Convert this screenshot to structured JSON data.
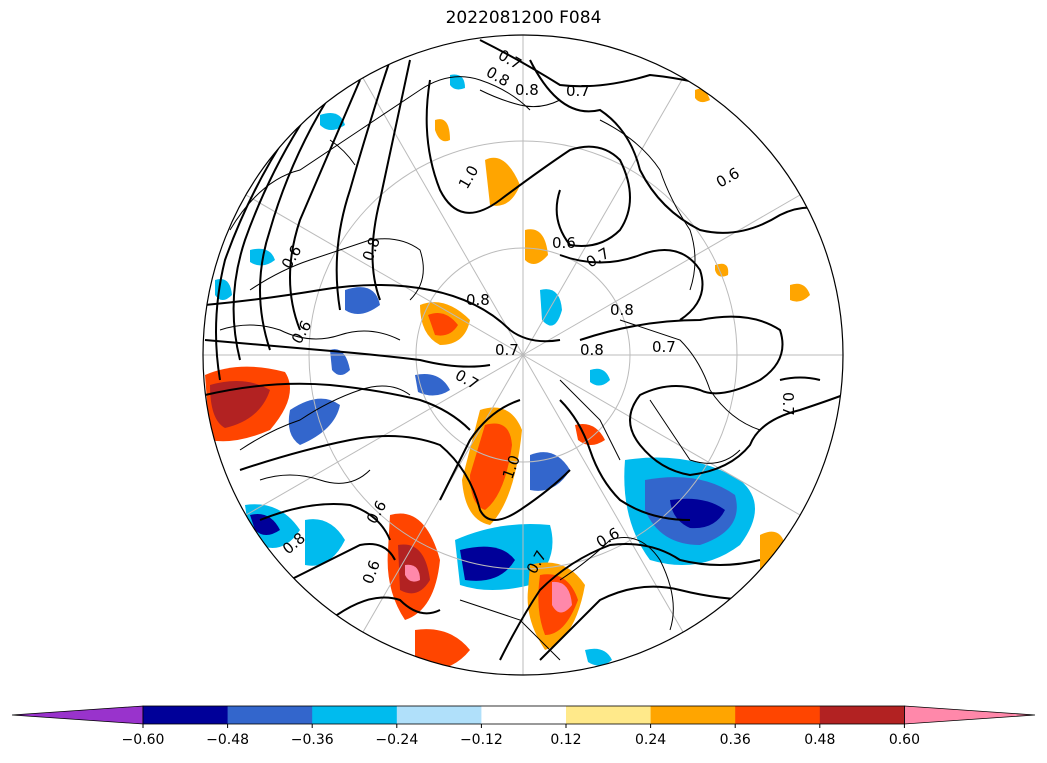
{
  "title": "2022081200 F084",
  "colorbar": {
    "ticks": [
      "−0.60",
      "−0.48",
      "−0.36",
      "−0.24",
      "−0.12",
      "0.12",
      "0.24",
      "0.36",
      "0.48",
      "0.60"
    ],
    "colors": [
      "#9933cc",
      "#000099",
      "#3366cc",
      "#00bbee",
      "#b0e0fa",
      "#ffffff",
      "#ffe98a",
      "#ffa500",
      "#ff4500",
      "#b22222",
      "#ff88aa"
    ]
  },
  "contour_labels": [
    "0.7",
    "0.8",
    "0.8",
    "0.7",
    "0.6",
    "0.6",
    "0.7",
    "0.8",
    "1.0",
    "0.8",
    "0.8",
    "0.7",
    "0.7",
    "0.8",
    "0.7",
    "0.7",
    "0.6",
    "0.6",
    "1.0",
    "0.6",
    "0.8",
    "0.6",
    "0.7",
    "0.6"
  ],
  "colors": {
    "blue_dark": "#000099",
    "blue_mid": "#3366cc",
    "blue_light": "#00bbee",
    "blue_pale": "#b0e0fa",
    "yellow": "#ffe98a",
    "orange": "#ffa500",
    "red_orange": "#ff4500",
    "dark_red": "#b22222",
    "pink": "#ff88aa"
  }
}
